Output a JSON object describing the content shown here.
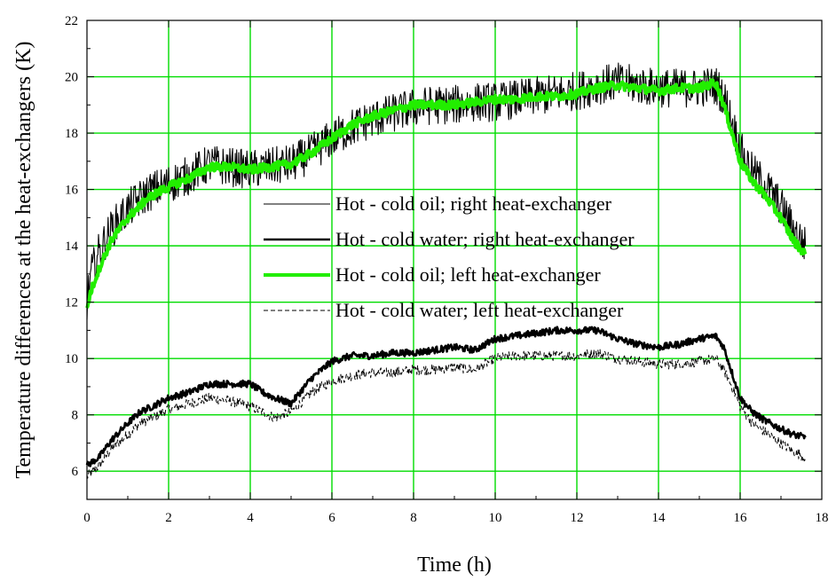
{
  "chart_data": {
    "type": "line",
    "xlabel": "Time (h)",
    "ylabel": "Temperature differences at the heat-exchangers (K)",
    "xlim": [
      0,
      18
    ],
    "ylim": [
      5,
      22
    ],
    "xticks": [
      0,
      2,
      4,
      6,
      8,
      10,
      12,
      14,
      16,
      18
    ],
    "yticks": [
      6,
      8,
      10,
      12,
      14,
      16,
      18,
      20,
      22
    ],
    "grid": true,
    "grid_color": "#00dd00",
    "legend_position": "center-right",
    "series": [
      {
        "name": "Hot - cold oil; right heat-exchanger",
        "color": "#000000",
        "style": "thin-solid",
        "noise": 0.7,
        "x": [
          0,
          0.1,
          0.3,
          0.6,
          1,
          1.5,
          2,
          2.5,
          3,
          3.5,
          4,
          4.5,
          5,
          5.5,
          6,
          6.5,
          7,
          7.5,
          8,
          8.5,
          9,
          9.5,
          10,
          10.5,
          11,
          11.5,
          12,
          12.5,
          13,
          13.5,
          14,
          14.5,
          15,
          15.4,
          15.6,
          15.8,
          16,
          16.3,
          16.6,
          17,
          17.3,
          17.6
        ],
        "y": [
          12.0,
          13.0,
          13.8,
          14.6,
          15.3,
          15.9,
          16.2,
          16.5,
          16.9,
          16.8,
          16.7,
          16.8,
          16.9,
          17.3,
          17.8,
          18.2,
          18.5,
          18.7,
          18.9,
          19.0,
          19.0,
          19.1,
          19.1,
          19.2,
          19.3,
          19.4,
          19.5,
          19.7,
          19.8,
          19.7,
          19.6,
          19.6,
          19.6,
          19.7,
          19.3,
          18.4,
          17.4,
          16.6,
          16.2,
          15.4,
          14.6,
          14.0
        ]
      },
      {
        "name": "Hot - cold water; right heat-exchanger",
        "color": "#000000",
        "style": "thick-solid",
        "noise": 0.12,
        "x": [
          0,
          0.3,
          0.6,
          1,
          1.3,
          1.6,
          2,
          2.5,
          3,
          3.5,
          4,
          4.3,
          4.6,
          5,
          5.5,
          6,
          6.5,
          7,
          7.5,
          8,
          8.5,
          9,
          9.5,
          10,
          10.5,
          11,
          11.5,
          12,
          12.5,
          13,
          13.5,
          14,
          14.5,
          15,
          15.4,
          15.6,
          15.8,
          16,
          16.3,
          16.6,
          17,
          17.3,
          17.6
        ],
        "y": [
          6.2,
          6.5,
          7.1,
          7.7,
          8.1,
          8.3,
          8.6,
          8.8,
          9.1,
          9.1,
          9.1,
          8.8,
          8.6,
          8.4,
          9.3,
          9.9,
          10.1,
          10.1,
          10.2,
          10.2,
          10.3,
          10.4,
          10.3,
          10.7,
          10.8,
          10.9,
          11.0,
          11.0,
          11.0,
          10.7,
          10.5,
          10.4,
          10.5,
          10.7,
          10.8,
          10.4,
          9.5,
          8.6,
          8.1,
          7.8,
          7.5,
          7.3,
          7.2
        ]
      },
      {
        "name": "Hot - cold oil; left heat-exchanger",
        "color": "#22ee00",
        "style": "thick-solid",
        "noise": 0.15,
        "x": [
          0,
          0.1,
          0.3,
          0.6,
          1,
          1.5,
          2,
          2.5,
          3,
          3.5,
          4,
          4.5,
          5,
          5.5,
          6,
          6.5,
          7,
          7.5,
          8,
          8.5,
          9,
          9.5,
          10,
          10.5,
          11,
          11.5,
          12,
          12.5,
          13,
          13.5,
          14,
          14.5,
          15,
          15.4,
          15.6,
          15.8,
          16,
          16.3,
          16.6,
          17,
          17.3,
          17.6
        ],
        "y": [
          11.8,
          12.4,
          13.2,
          14.2,
          15.0,
          15.7,
          16.1,
          16.4,
          16.8,
          16.8,
          16.7,
          16.8,
          16.9,
          17.3,
          17.8,
          18.3,
          18.6,
          18.8,
          19.0,
          19.0,
          19.0,
          19.1,
          19.2,
          19.2,
          19.3,
          19.3,
          19.4,
          19.6,
          19.7,
          19.6,
          19.5,
          19.6,
          19.6,
          19.8,
          19.0,
          18.0,
          17.0,
          16.3,
          15.8,
          15.0,
          14.2,
          13.7
        ]
      },
      {
        "name": "Hot - cold water; left heat-exchanger",
        "color": "#000000",
        "style": "dashed",
        "noise": 0.18,
        "x": [
          0,
          0.3,
          0.6,
          1,
          1.3,
          1.6,
          2,
          2.5,
          3,
          3.5,
          4,
          4.3,
          4.6,
          5,
          5.5,
          6,
          6.5,
          7,
          7.5,
          8,
          8.5,
          9,
          9.5,
          10,
          10.5,
          11,
          11.5,
          12,
          12.5,
          13,
          13.5,
          14,
          14.5,
          15,
          15.4,
          15.6,
          15.8,
          16,
          16.3,
          16.6,
          17,
          17.3,
          17.6
        ],
        "y": [
          5.8,
          6.2,
          6.8,
          7.3,
          7.7,
          7.9,
          8.2,
          8.4,
          8.6,
          8.5,
          8.3,
          8.1,
          7.9,
          8.1,
          8.8,
          9.2,
          9.4,
          9.5,
          9.5,
          9.6,
          9.6,
          9.7,
          9.6,
          10.0,
          10.1,
          10.1,
          10.1,
          10.1,
          10.2,
          10.0,
          9.9,
          9.8,
          9.8,
          9.9,
          10.0,
          9.6,
          9.0,
          8.3,
          7.7,
          7.4,
          7.0,
          6.7,
          6.5
        ]
      }
    ]
  }
}
